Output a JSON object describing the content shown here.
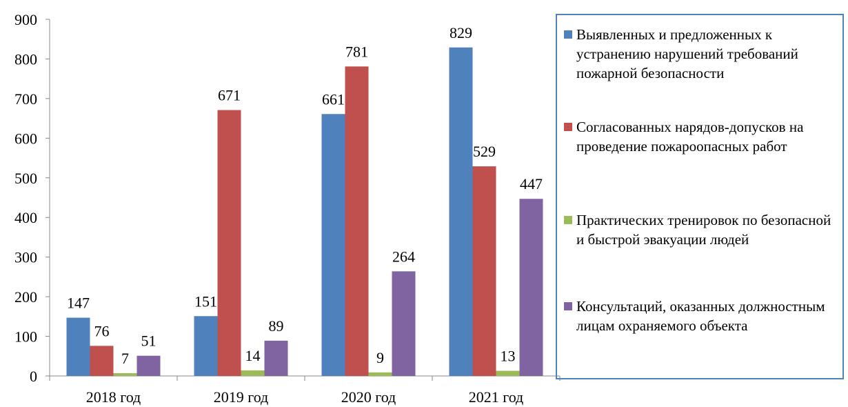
{
  "chart_data": {
    "type": "bar",
    "categories": [
      "2018 год",
      "2019 год",
      "2020 год",
      "2021 год"
    ],
    "series": [
      {
        "name": "Выявленных и предложенных к устранению нарушений требований пожарной безопасности",
        "color": "#4f81bd",
        "values": [
          147,
          151,
          661,
          829
        ]
      },
      {
        "name": "Согласованных нарядов-допусков на проведение пожароопасных работ",
        "color": "#c0504d",
        "values": [
          76,
          671,
          781,
          529
        ]
      },
      {
        "name": "Практических тренировок по безопасной и быстрой эвакуации людей",
        "color": "#9bbb59",
        "values": [
          7,
          14,
          9,
          13
        ]
      },
      {
        "name": "Консультаций, оказанных должностным лицам охраняемого объекта",
        "color": "#8064a2",
        "values": [
          51,
          89,
          264,
          447
        ]
      }
    ],
    "ylim": [
      0,
      900
    ],
    "yticks": [
      0,
      100,
      200,
      300,
      400,
      500,
      600,
      700,
      800,
      900
    ],
    "grid": false,
    "legend": "right"
  }
}
